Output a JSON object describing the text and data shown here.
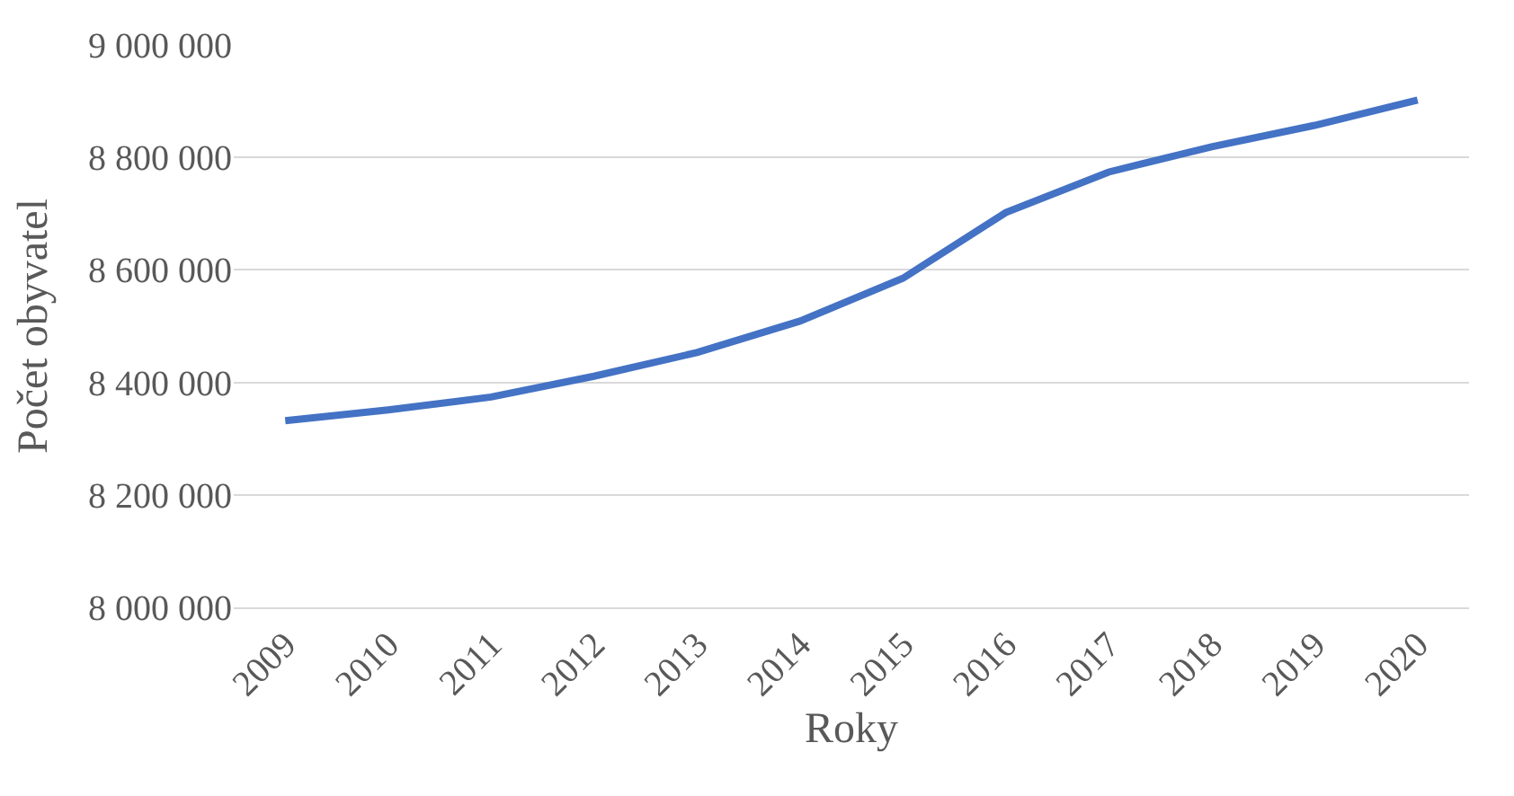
{
  "chart_data": {
    "type": "line",
    "xlabel": "Roky",
    "ylabel": "Počet obyvatel",
    "categories": [
      "2009",
      "2010",
      "2011",
      "2012",
      "2013",
      "2014",
      "2015",
      "2016",
      "2017",
      "2018",
      "2019",
      "2020"
    ],
    "series": [
      {
        "color": "#4472c4",
        "values": [
          8332000,
          8351000,
          8374000,
          8411000,
          8453000,
          8509000,
          8585000,
          8702000,
          8774000,
          8819000,
          8857000,
          8902000
        ]
      }
    ],
    "ylim": [
      8000000,
      9000000
    ],
    "yticks": [
      {
        "value": 8000000,
        "label": "8 000 000"
      },
      {
        "value": 8200000,
        "label": "8 200 000"
      },
      {
        "value": 8400000,
        "label": "8 400 000"
      },
      {
        "value": 8600000,
        "label": "8 600 000"
      },
      {
        "value": 8800000,
        "label": "8 800 000"
      },
      {
        "value": 9000000,
        "label": "9 000 000"
      }
    ],
    "grid": "y",
    "marker": "none",
    "line_style": "solid",
    "legend": false
  }
}
